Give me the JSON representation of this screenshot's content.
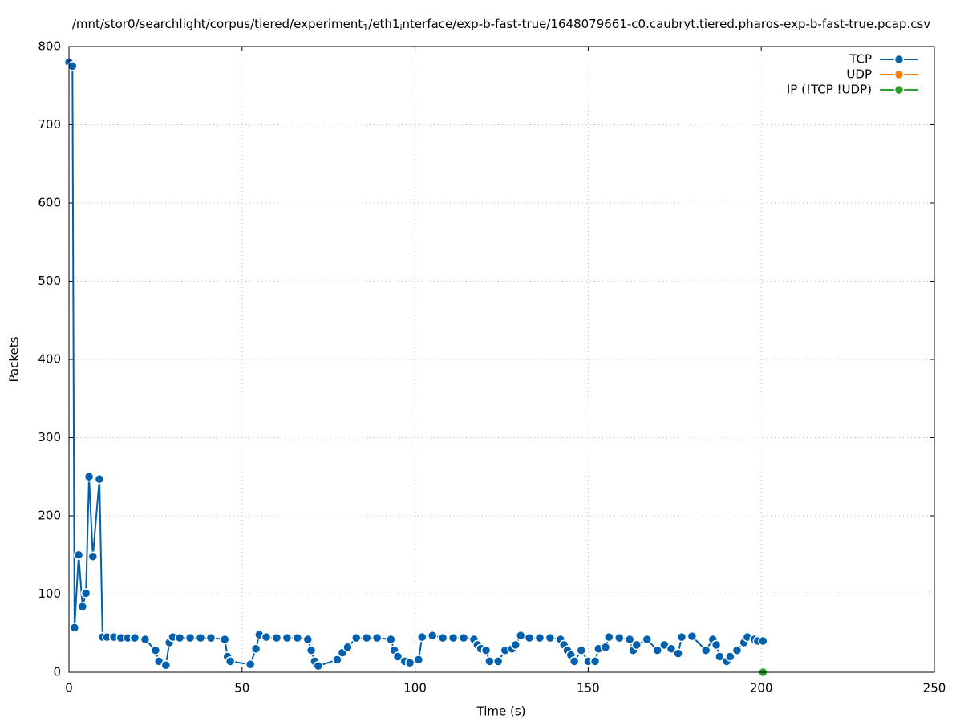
{
  "chart_data": {
    "type": "line",
    "title": [
      "/mnt/stor0/searchlight/corpus/tiered/experiment",
      "1",
      "/eth1",
      "i",
      "nterface/exp-b-fast-true/1648079661-c0.caubryt.tiered.pharos-exp-b-fast-true.pcap.csv"
    ],
    "xlabel": "Time (s)",
    "ylabel": "Packets",
    "xlim": [
      0,
      250
    ],
    "xticks": [
      0,
      50,
      100,
      150,
      200,
      250
    ],
    "ylim": [
      0,
      800
    ],
    "yticks": [
      0,
      100,
      200,
      300,
      400,
      500,
      600,
      700,
      800
    ],
    "grid": true,
    "legend": "top-right",
    "series": [
      {
        "name": "TCP",
        "color": "#0060ad",
        "x": [
          0,
          1,
          1.6,
          2.8,
          3.9,
          4.9,
          5.8,
          6.9,
          8.8,
          9.7,
          11,
          13,
          15,
          17,
          19,
          22,
          25,
          26,
          28,
          29,
          30,
          32,
          35,
          38,
          41,
          45,
          45.8,
          46.6,
          52.4,
          54,
          55,
          57,
          60,
          63,
          66,
          69,
          70,
          71,
          72,
          77.5,
          79,
          80.5,
          83,
          86,
          89,
          93,
          94,
          95,
          97,
          98.5,
          101,
          102,
          105,
          108,
          111,
          114,
          117,
          118,
          119,
          120.5,
          121.5,
          124,
          126,
          128,
          129,
          130.5,
          133,
          136,
          139,
          142,
          143,
          144,
          145,
          146,
          148,
          150,
          152,
          153,
          155,
          156,
          159,
          162,
          163,
          164,
          167,
          170,
          172,
          174,
          176,
          177,
          180,
          184,
          186,
          187,
          188,
          190,
          191,
          193,
          195,
          196,
          198,
          199,
          200.5
        ],
        "values": [
          780,
          775,
          57,
          150,
          84,
          101,
          250,
          148,
          247,
          45,
          45,
          45,
          44,
          44,
          44,
          42,
          28,
          14,
          9,
          38,
          45,
          44,
          44,
          44,
          44,
          42,
          20,
          14,
          10,
          30,
          48,
          45,
          44,
          44,
          44,
          42,
          28,
          14,
          8,
          16,
          25,
          32,
          44,
          44,
          44,
          42,
          28,
          20,
          14,
          12,
          16,
          45,
          47,
          44,
          44,
          44,
          42,
          35,
          30,
          28,
          14,
          14,
          28,
          30,
          35,
          47,
          44,
          44,
          44,
          42,
          35,
          28,
          22,
          14,
          28,
          14,
          14,
          30,
          32,
          45,
          44,
          42,
          28,
          35,
          42,
          28,
          35,
          30,
          24,
          45,
          46,
          28,
          42,
          35,
          20,
          14,
          20,
          28,
          38,
          45,
          42,
          40,
          40
        ]
      },
      {
        "name": "UDP",
        "color": "#ff7f0e",
        "x": [],
        "values": []
      },
      {
        "name": "IP (!TCP  !UDP)",
        "color": "#2ca02c",
        "x": [
          200.5
        ],
        "values": [
          0
        ]
      }
    ]
  }
}
